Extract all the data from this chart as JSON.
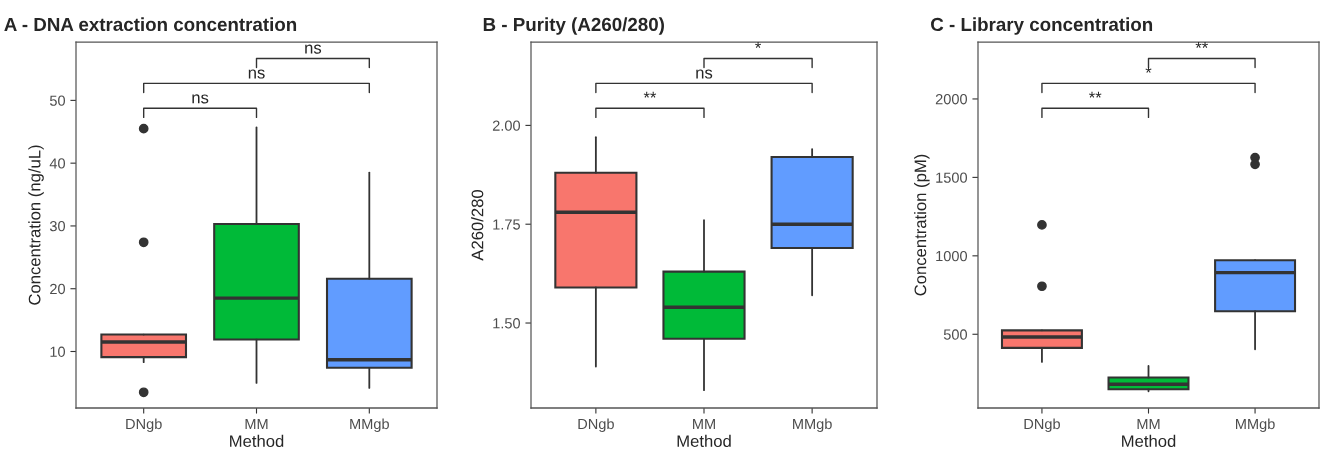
{
  "chart_data": [
    {
      "type": "box",
      "title": "A - DNA extraction concentration",
      "xlabel": "Method",
      "ylabel": "Concentration (ng/uL)",
      "categories": [
        "DNgb",
        "MM",
        "MMgb"
      ],
      "colors": [
        "#f8766d",
        "#00ba38",
        "#619cff"
      ],
      "boxes": [
        {
          "low": 8.3,
          "q1": 9.1,
          "median": 11.5,
          "q3": 12.7,
          "high": 12.7,
          "outliers": [
            45.5,
            27.4,
            3.5
          ]
        },
        {
          "low": 5.0,
          "q1": 11.9,
          "median": 18.5,
          "q3": 30.3,
          "high": 45.7
        },
        {
          "low": 4.2,
          "q1": 7.4,
          "median": 8.7,
          "q3": 21.6,
          "high": 38.5
        }
      ],
      "ylim": [
        1.0,
        59.3
      ],
      "yticks": [
        10,
        20,
        30,
        40,
        50
      ],
      "grid": false,
      "annotations": [
        "ns",
        "ns",
        "ns"
      ]
    },
    {
      "type": "box",
      "title": "B - Purity (A260/280)",
      "xlabel": "Method",
      "ylabel": "A260/280",
      "categories": [
        "DNgb",
        "MM",
        "MMgb"
      ],
      "colors": [
        "#f8766d",
        "#00ba38",
        "#619cff"
      ],
      "boxes": [
        {
          "low": 1.39,
          "q1": 1.59,
          "median": 1.78,
          "q3": 1.88,
          "high": 1.97
        },
        {
          "low": 1.33,
          "q1": 1.46,
          "median": 1.54,
          "q3": 1.63,
          "high": 1.76
        },
        {
          "low": 1.57,
          "q1": 1.69,
          "median": 1.75,
          "q3": 1.92,
          "high": 1.94
        }
      ],
      "ylim": [
        1.285,
        2.211
      ],
      "yticks": [
        {
          "value": 1.5,
          "label": "1.50"
        },
        {
          "value": 1.75,
          "label": "1.75"
        },
        {
          "value": 2.0,
          "label": "2.00"
        }
      ],
      "grid": false,
      "annotations": [
        "**",
        "ns",
        "*"
      ]
    },
    {
      "type": "box",
      "title": "C - Library concentration",
      "xlabel": "Method",
      "ylabel": "Concentration (pM)",
      "categories": [
        "DNgb",
        "MM",
        "MMgb"
      ],
      "colors": [
        "#f8766d",
        "#00ba38",
        "#619cff"
      ],
      "boxes": [
        {
          "low": 324,
          "q1": 413,
          "median": 483,
          "q3": 525,
          "high": 525,
          "outliers": [
            1197,
            806
          ]
        },
        {
          "low": 136,
          "q1": 149,
          "median": 181,
          "q3": 224,
          "high": 298
        },
        {
          "low": 404,
          "q1": 647,
          "median": 893,
          "q3": 972,
          "high": 972,
          "outliers": [
            1626,
            1583
          ]
        }
      ],
      "ylim": [
        30,
        2363
      ],
      "yticks": [
        500,
        1000,
        1500,
        2000
      ],
      "grid": false,
      "annotations": [
        "**",
        "*",
        "**"
      ]
    }
  ]
}
